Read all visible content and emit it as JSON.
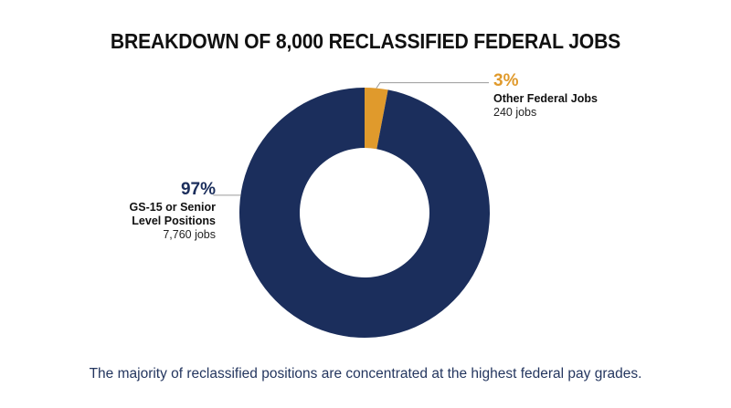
{
  "chart_data": {
    "type": "pie",
    "donut": true,
    "title": "BREAKDOWN OF 8,000 RECLASSIFIED FEDERAL JOBS",
    "categories": [
      "Other Federal Jobs",
      "GS-15 or Senior Level Positions"
    ],
    "values": [
      240,
      7760
    ],
    "percent_labels": [
      "3%",
      "97%"
    ],
    "count_labels": [
      "240 jobs",
      "7,760 jobs"
    ],
    "colors": [
      "#e09a2c",
      "#1b2e5c"
    ],
    "caption": "The majority of reclassified positions are concentrated at the highest federal pay grades.",
    "legend": "none"
  },
  "labels": {
    "other": {
      "pct": "3%",
      "name": "Other Federal Jobs",
      "count": "240 jobs"
    },
    "senior": {
      "pct": "97%",
      "name_line1": "GS-15 or Senior",
      "name_line2": "Level Positions",
      "count": "7,760 jobs"
    }
  }
}
